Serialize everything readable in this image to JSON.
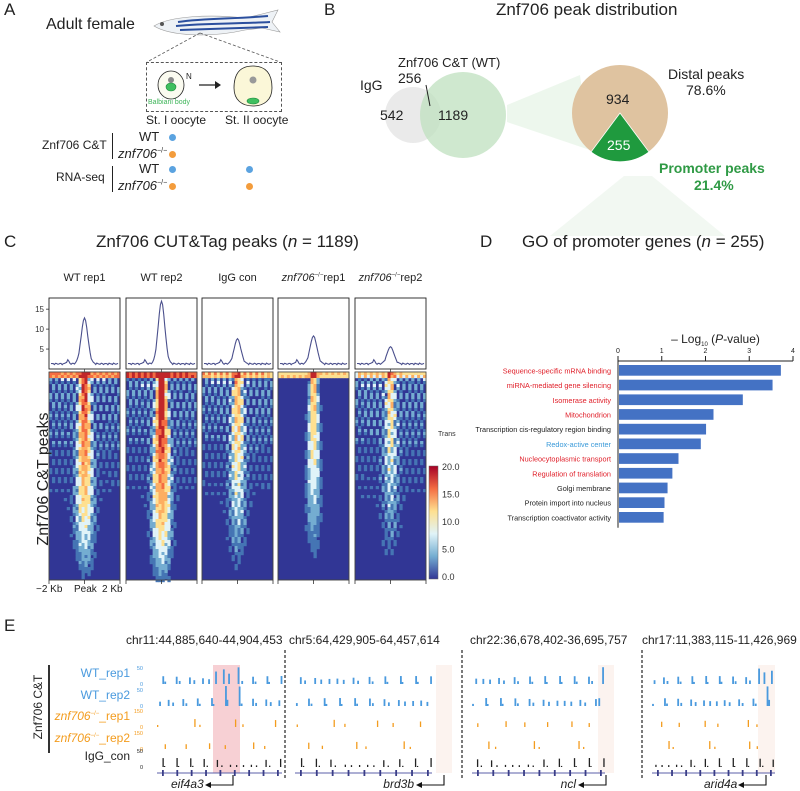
{
  "panels": {
    "A": {
      "label": "A",
      "organism": "Adult female",
      "nucleus_label": "N",
      "balbiani_label": "Balbiani body",
      "stage1": "St. I oocyte",
      "stage2": "St. II oocyte",
      "rows": [
        {
          "group": "Znf706 C&T",
          "genotype": "WT",
          "genotype_italic": false,
          "stage1": true,
          "stage2": false,
          "color": "#5ba3e0"
        },
        {
          "group": "Znf706 C&T",
          "genotype": "znf706",
          "sup": "−/−",
          "genotype_italic": true,
          "stage1": true,
          "stage2": false,
          "color": "#f39c3c"
        },
        {
          "group": "RNA-seq",
          "genotype": "WT",
          "genotype_italic": false,
          "stage1": true,
          "stage2": true,
          "color": "#5ba3e0"
        },
        {
          "group": "RNA-seq",
          "genotype": "znf706",
          "sup": "−/−",
          "genotype_italic": true,
          "stage1": true,
          "stage2": true,
          "color": "#f39c3c"
        }
      ],
      "groups": [
        "Znf706 C&T",
        "RNA-seq"
      ]
    },
    "B": {
      "label": "B",
      "title": "Znf706 peak distribution",
      "venn": {
        "set_a": "IgG",
        "set_b": "Znf706 C&T (WT)",
        "only_a": "542",
        "overlap": "256",
        "only_b": "1189"
      },
      "pie": {
        "distal_label": "Distal peaks",
        "distal_pct": "78.6%",
        "distal_count": "934",
        "promoter_label": "Promoter peaks",
        "promoter_pct": "21.4%",
        "promoter_count": "255"
      }
    },
    "C": {
      "label": "C",
      "title_prefix": "Znf706 CUT&Tag peaks (",
      "title_n": "n",
      "title_suffix": " = 1189)",
      "ylabel": "Znf706 C&T peaks",
      "samples": [
        {
          "name": "WT rep1",
          "italic_prefix": "",
          "peak": 12.8
        },
        {
          "name": "WT rep2",
          "italic_prefix": "",
          "peak": 17.0
        },
        {
          "name": "IgG con",
          "italic_prefix": "",
          "peak": 7.6
        },
        {
          "name": "rep1",
          "italic_prefix": "znf706",
          "sup": "−/−",
          "peak": 8.3
        },
        {
          "name": "rep2",
          "italic_prefix": "znf706",
          "sup": "−/−",
          "peak": 5.6
        }
      ],
      "profile_yticks": [
        "5",
        "10",
        "15"
      ],
      "xticks": [
        "−2 Kb",
        "Peak",
        "2 Kb"
      ],
      "colorbar": {
        "label": "Trans",
        "ticks": [
          "20.0",
          "15.0",
          "10.0",
          "5.0",
          "0.0"
        ],
        "colors": [
          "#a50026",
          "#f46d43",
          "#fee090",
          "#e0f3f8",
          "#74add1",
          "#313695"
        ]
      }
    },
    "D": {
      "label": "D",
      "title_prefix": "GO of promoter genes (",
      "title_n": "n",
      "title_suffix": " = 255)"
    },
    "E": {
      "label": "E",
      "group_label": "Znf706 C&T",
      "tracks": [
        {
          "name": "WT_rep1",
          "italic_prefix": "",
          "scale_max": "50",
          "scale_min": "0",
          "color": "#4a9ade"
        },
        {
          "name": "WT_rep2",
          "italic_prefix": "",
          "scale_max": "50",
          "scale_min": "0",
          "color": "#4a9ade"
        },
        {
          "name": "_rep1",
          "italic_prefix": "znf706",
          "sup": "−/−",
          "scale_max": "150",
          "scale_min": "0",
          "color": "#f39c1e"
        },
        {
          "name": "_rep2",
          "italic_prefix": "znf706",
          "sup": "−/−",
          "scale_max": "150",
          "scale_min": "0",
          "color": "#f39c1e"
        },
        {
          "name": "IgG_con",
          "italic_prefix": "",
          "scale_max": "50",
          "scale_min": "0",
          "color": "#222222"
        }
      ],
      "loci": [
        {
          "coords": "chr11:44,885,640-44,904,453",
          "gene": "eif4a3"
        },
        {
          "coords": "chr5:64,429,905-64,457,614",
          "gene": "brd3b"
        },
        {
          "coords": "chr22:36,678,402-36,695,757",
          "gene": "ncl"
        },
        {
          "coords": "chr17:11,383,115-11,426,969",
          "gene": "arid4a"
        }
      ]
    }
  },
  "chart_data": [
    {
      "type": "bar",
      "title": "GO of promoter genes (n = 255)",
      "xlabel": "−Log10 (P-value)",
      "ylabel": "",
      "orientation": "horizontal",
      "xlim": [
        0,
        4
      ],
      "xticks": [
        "0",
        "1",
        "2",
        "3",
        "4"
      ],
      "categories": [
        "Sequence-specific mRNA binding",
        "miRNA-mediated gene silencing",
        "Isomerase activity",
        "Mitochondrion",
        "Transcription cis-regulatory region binding",
        "Redox-active center",
        "Nucleocytoplasmic transport",
        "Regulation of translation",
        "Golgi membrane",
        "Protein import into nucleus",
        "Transcription coactivator activity"
      ],
      "category_colors": [
        "#e0202a",
        "#e0202a",
        "#e0202a",
        "#e0202a",
        "#222222",
        "#3a9ad9",
        "#e0202a",
        "#e0202a",
        "#222222",
        "#222222",
        "#222222"
      ],
      "values": [
        3.7,
        3.51,
        2.83,
        2.16,
        1.99,
        1.87,
        1.36,
        1.22,
        1.11,
        1.04,
        1.02
      ],
      "bar_color": "#4472c4"
    },
    {
      "type": "pie",
      "title": "Znf706 peak distribution",
      "labels": [
        "Distal peaks",
        "Promoter peaks"
      ],
      "values": [
        934,
        255
      ],
      "percent": [
        78.6,
        21.4
      ],
      "colors": [
        "#dfc3a0",
        "#1f9a3e"
      ]
    },
    {
      "type": "line",
      "title": "Znf706 CUT&Tag peaks (n = 1189) profiles",
      "x": [
        "−2 Kb",
        "Peak",
        "2 Kb"
      ],
      "ylim": [
        0,
        17.5
      ],
      "series": [
        {
          "name": "WT rep1",
          "peak": 12.8,
          "baseline": 1.3
        },
        {
          "name": "WT rep2",
          "peak": 17.0,
          "baseline": 1.3
        },
        {
          "name": "IgG con",
          "peak": 7.6,
          "baseline": 1.3
        },
        {
          "name": "znf706−/− rep1",
          "peak": 8.3,
          "baseline": 1.3
        },
        {
          "name": "znf706−/− rep2",
          "peak": 5.6,
          "baseline": 1.2
        }
      ]
    }
  ]
}
